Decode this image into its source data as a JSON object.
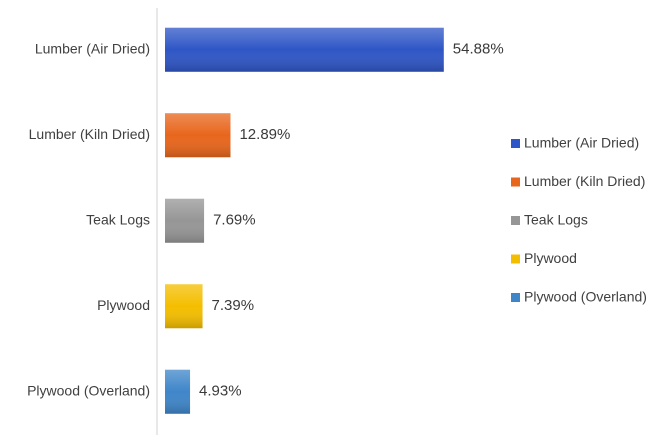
{
  "chart_data": {
    "type": "bar",
    "orientation": "horizontal",
    "categories": [
      "Lumber (Air Dried)",
      "Lumber (Kiln Dried)",
      "Teak Logs",
      "Plywood",
      "Plywood (Overland)"
    ],
    "values": [
      54.88,
      12.89,
      7.69,
      7.39,
      4.93
    ],
    "value_labels": [
      "54.88%",
      "12.89%",
      "7.69%",
      "7.39%",
      "4.93%"
    ],
    "colors": [
      "#2f56c6",
      "#e8661c",
      "#969696",
      "#f4be00",
      "#3f86c9"
    ],
    "legend": "right"
  }
}
